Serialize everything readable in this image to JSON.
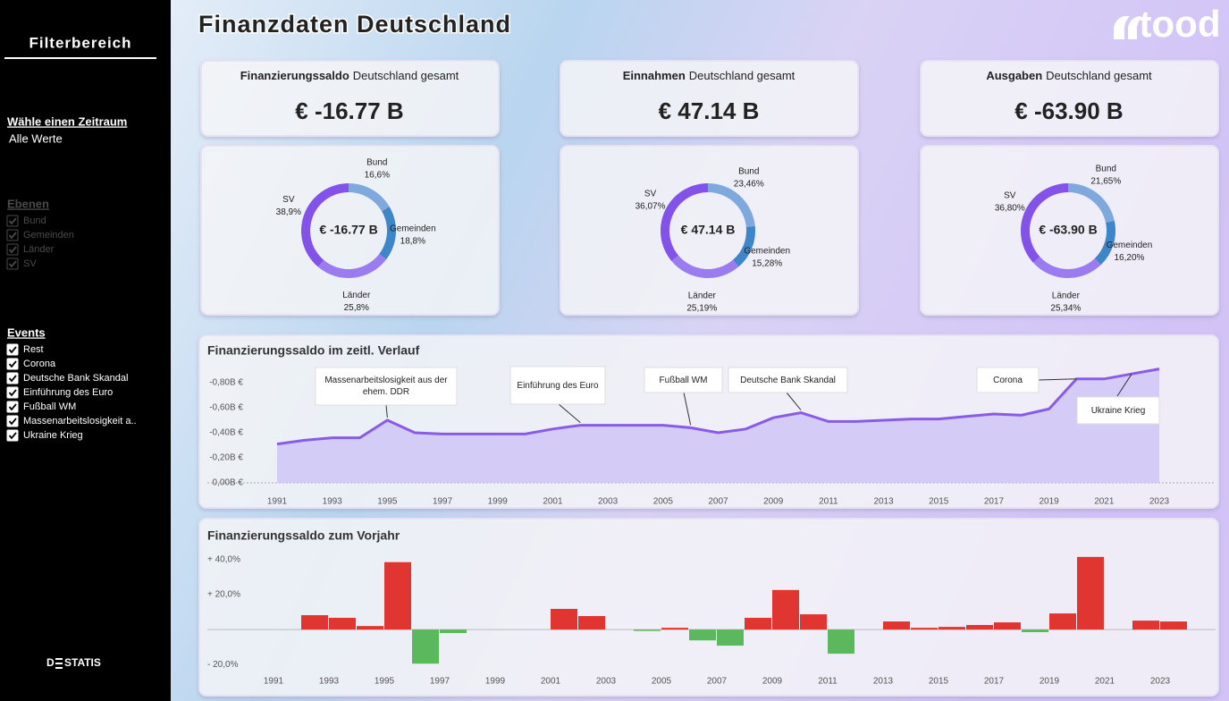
{
  "header": {
    "title": "Finanzdaten Deutschland",
    "logo": "tood"
  },
  "sidebar": {
    "title": "Filterbereich",
    "period_label": "Wähle einen Zeitraum",
    "period_value": "Alle Werte",
    "levels_label": "Ebenen",
    "levels": [
      "Bund",
      "Gemeinden",
      "Länder",
      "SV"
    ],
    "events_label": "Events",
    "events": [
      "Rest",
      "Corona",
      "Deutsche Bank Skandal",
      "Einführung des Euro",
      "Fußball WM",
      "Massenarbeitslosigkeit a..",
      "Ukraine Krieg"
    ],
    "footer": [
      "D",
      "STATIS"
    ]
  },
  "kpis": [
    {
      "title_bold": "Finanzierungssaldo",
      "title_rest": "Deutschland gesamt",
      "value": "€ -16.77 B"
    },
    {
      "title_bold": "Einnahmen",
      "title_rest": "Deutschland gesamt",
      "value": "€ 47.14 B"
    },
    {
      "title_bold": "Ausgaben",
      "title_rest": "Deutschland gesamt",
      "value": "€ -63.90 B"
    }
  ],
  "chart_data": [
    {
      "type": "donut",
      "center_label": "€ -16.77 B",
      "categories": [
        "Bund",
        "Gemeinden",
        "Länder",
        "SV"
      ],
      "values": [
        16.6,
        18.8,
        25.8,
        38.9
      ],
      "value_labels": [
        "16,6%",
        "18,8%",
        "25,8%",
        "38,9%"
      ],
      "colors": [
        "#7fa8dc",
        "#3f86c8",
        "#9b7cf0",
        "#8352e8"
      ]
    },
    {
      "type": "donut",
      "center_label": "€ 47.14 B",
      "categories": [
        "Bund",
        "Gemeinden",
        "Länder",
        "SV"
      ],
      "values": [
        23.46,
        15.28,
        25.19,
        36.07
      ],
      "value_labels": [
        "23,46%",
        "15,28%",
        "25,19%",
        "36,07%"
      ],
      "colors": [
        "#7fa8dc",
        "#3f86c8",
        "#9b7cf0",
        "#8352e8"
      ]
    },
    {
      "type": "donut",
      "center_label": "€ -63.90 B",
      "categories": [
        "Bund",
        "Gemeinden",
        "Länder",
        "SV"
      ],
      "values": [
        21.65,
        16.2,
        25.34,
        36.8
      ],
      "value_labels": [
        "21,65%",
        "16,20%",
        "25,34%",
        "36,80%"
      ],
      "colors": [
        "#7fa8dc",
        "#3f86c8",
        "#9b7cf0",
        "#8352e8"
      ]
    },
    {
      "type": "line",
      "title": "Finanzierungssaldo im zeitl. Verlauf",
      "color": "#8a5ce6",
      "area_color": "#cdc3f6",
      "x": [
        1991,
        1992,
        1993,
        1994,
        1995,
        1996,
        1997,
        1998,
        1999,
        2000,
        2001,
        2002,
        2003,
        2004,
        2005,
        2006,
        2007,
        2008,
        2009,
        2010,
        2011,
        2012,
        2013,
        2014,
        2015,
        2016,
        2017,
        2018,
        2019,
        2020,
        2021,
        2022,
        2023
      ],
      "values": [
        -0.31,
        -0.34,
        -0.36,
        -0.36,
        -0.5,
        -0.4,
        -0.39,
        -0.39,
        -0.39,
        -0.39,
        -0.43,
        -0.46,
        -0.46,
        -0.46,
        -0.46,
        -0.44,
        -0.4,
        -0.43,
        -0.52,
        -0.56,
        -0.49,
        -0.49,
        -0.5,
        -0.51,
        -0.51,
        -0.53,
        -0.55,
        -0.54,
        -0.59,
        -0.83,
        -0.83,
        -0.87,
        -0.91
      ],
      "xlim": [
        1991,
        2023
      ],
      "xticks": [
        1991,
        1993,
        1995,
        1997,
        1999,
        2001,
        2003,
        2005,
        2007,
        2009,
        2011,
        2013,
        2015,
        2017,
        2019,
        2021,
        2023
      ],
      "ylim": [
        0,
        -0.95
      ],
      "yticks": [
        {
          "value": 0,
          "label": "0,00B €"
        },
        {
          "value": -0.2,
          "label": "-0,20B €"
        },
        {
          "value": -0.4,
          "label": "-0,40B €"
        },
        {
          "value": -0.6,
          "label": "-0,60B €"
        },
        {
          "value": -0.8,
          "label": "-0,80B €"
        }
      ],
      "annotations": [
        {
          "text": "Massenarbeitslosigkeit aus der ehem. DDR",
          "x": 1995
        },
        {
          "text": "Einführung des Euro",
          "x": 2002
        },
        {
          "text": "Fußball WM",
          "x": 2006
        },
        {
          "text": "Deutsche Bank Skandal",
          "x": 2010
        },
        {
          "text": "Corona",
          "x": 2020
        },
        {
          "text": "Ukraine Krieg",
          "x": 2022
        }
      ]
    },
    {
      "type": "bar",
      "title": "Finanzierungssaldo zum Vorjahr",
      "positive_color": "#e03530",
      "negative_color": "#5cb85c",
      "x": [
        1991,
        1992,
        1993,
        1994,
        1995,
        1996,
        1997,
        1998,
        1999,
        2000,
        2001,
        2002,
        2003,
        2004,
        2005,
        2006,
        2007,
        2008,
        2009,
        2010,
        2011,
        2012,
        2013,
        2014,
        2015,
        2016,
        2017,
        2018,
        2019,
        2020,
        2021,
        2022,
        2023
      ],
      "values": [
        0,
        8.2,
        6.7,
        2,
        38.5,
        -19.5,
        -2,
        0,
        0,
        0,
        11.8,
        7.7,
        0,
        -0.8,
        1,
        -6.2,
        -9.2,
        6.7,
        22.6,
        8.7,
        -13.8,
        0,
        4.6,
        1,
        1.5,
        2.6,
        4.1,
        -1.5,
        9.2,
        41.5,
        0,
        5.1,
        4.6
      ],
      "xlim": [
        1991,
        2023
      ],
      "xticks": [
        1991,
        1993,
        1995,
        1997,
        1999,
        2001,
        2003,
        2005,
        2007,
        2009,
        2011,
        2013,
        2015,
        2017,
        2019,
        2021,
        2023
      ],
      "ylim": [
        -25,
        45
      ],
      "yticks": [
        {
          "value": 40,
          "label": "+ 40,0%"
        },
        {
          "value": 20,
          "label": "+ 20,0%"
        },
        {
          "value": -20,
          "label": "- 20,0%"
        }
      ]
    }
  ]
}
